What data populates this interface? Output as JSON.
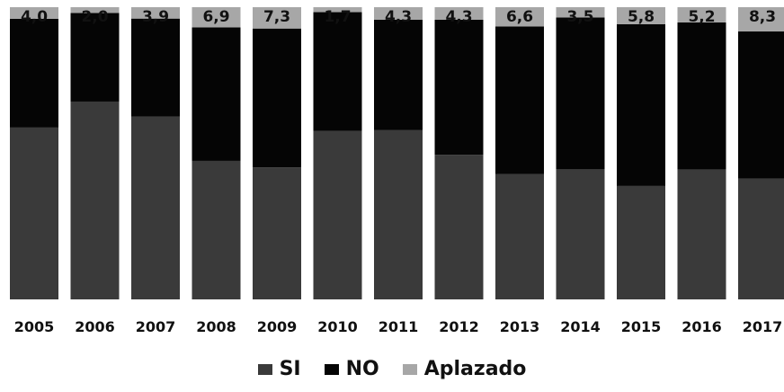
{
  "chart_data": {
    "type": "bar",
    "stacked": true,
    "percent_stacked": true,
    "categories": [
      "2005",
      "2006",
      "2007",
      "2008",
      "2009",
      "2010",
      "2011",
      "2012",
      "2013",
      "2014",
      "2015",
      "2016",
      "2017"
    ],
    "series": [
      {
        "name": "SI",
        "color": "#3a3a3a",
        "values": [
          58.8,
          67.7,
          62.6,
          47.4,
          45.2,
          57.6,
          58.0,
          49.5,
          42.9,
          44.5,
          38.8,
          44.4,
          41.3
        ]
      },
      {
        "name": "NO",
        "color": "#050505",
        "values": [
          37.2,
          30.3,
          33.5,
          45.7,
          47.5,
          40.7,
          37.7,
          46.2,
          50.5,
          52.0,
          55.4,
          50.4,
          50.4
        ]
      },
      {
        "name": "Aplazado",
        "color": "#a7a7a7",
        "values": [
          4.0,
          2.0,
          3.9,
          6.9,
          7.3,
          1.7,
          4.3,
          4.3,
          6.6,
          3.5,
          5.8,
          5.2,
          8.3
        ]
      }
    ],
    "data_labels": [
      "4,0",
      "2,0",
      "3,9",
      "6,9",
      "7,3",
      "1,7",
      "4,3",
      "4,3",
      "6,6",
      "3,5",
      "5,8",
      "5,2",
      "8,3"
    ],
    "ylim": [
      0,
      100
    ],
    "legend_position": "bottom",
    "grid": false
  }
}
